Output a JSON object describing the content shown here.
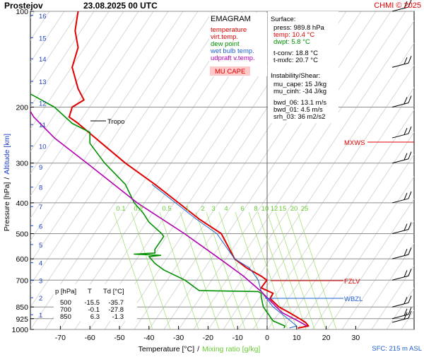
{
  "header": {
    "station": "Prostejov",
    "datetime": "23.08.2025 00 UTC",
    "credit": "CHMI © 2025"
  },
  "legend": {
    "title": "EMAGRAM",
    "items": [
      {
        "label": "temperature",
        "color": "#e00000"
      },
      {
        "label": "virt.temp.",
        "color": "#e00000"
      },
      {
        "label": "dew point",
        "color": "#009000"
      },
      {
        "label": "wet bulb temp.",
        "color": "#2060d0"
      },
      {
        "label": "udpraft v.temp.",
        "color": "#b000b0"
      }
    ],
    "badge": "MU CAPE",
    "badge_bg": "#ffc8c8",
    "badge_color": "#e00000"
  },
  "info": {
    "surface_title": "Surface:",
    "lines": [
      {
        "text": "press: 989.8 hPa",
        "color": "#000000"
      },
      {
        "text": "temp: 10.4 °C",
        "color": "#e00000"
      },
      {
        "text": "dwpt: 5.8 °C",
        "color": "#009000"
      },
      {
        "text": "t-conv: 18.8 °C",
        "color": "#000000"
      },
      {
        "text": "t-mxfc: 20.7 °C",
        "color": "#000000"
      }
    ],
    "instab_title": "Instability/Shear:",
    "stats": [
      "mu_cape: 15 J/kg",
      "mu_cinh: -34 J/kg",
      "bwd_06: 13.1 m/s",
      "bwd_01: 4.5 m/s",
      "srh_03: 36 m2/s2"
    ]
  },
  "table": {
    "headers": [
      "p [hPa]",
      "T",
      "Td [°C]"
    ],
    "rows": [
      [
        "500",
        "-15.5",
        "-35.7"
      ],
      [
        "700",
        "-0.1",
        "-27.8"
      ],
      [
        "850",
        "6.3",
        "-1.3"
      ]
    ]
  },
  "levels": {
    "tropo": "Tropo",
    "mxws": "MXWS",
    "fzlv": "FZLV",
    "wbzl": "WBZL",
    "sfc": "SFC: 215 m ASL"
  },
  "axes": {
    "xlabel": "Temperature [°C]",
    "xlabel_sep": "/",
    "xlabel2": "Mixing ratio [g/kg]",
    "ylabel": "Pressure [hPa]",
    "ylabel_sep": "/",
    "ylabel2": "Altitude [km]"
  },
  "chart_data": {
    "type": "line",
    "title": "EMAGRAM",
    "xlabel": "Temperature [°C]",
    "ylabel": "Pressure [hPa]",
    "y_scale": "log",
    "xlim": [
      -80,
      40
    ],
    "ylim": [
      1000,
      100
    ],
    "x_ticks": [
      -70,
      -60,
      -50,
      -40,
      -30,
      -20,
      -10,
      0,
      10,
      20,
      30
    ],
    "p_ticks": [
      100,
      200,
      300,
      400,
      500,
      600,
      700,
      850,
      925,
      1000
    ],
    "km_ticks": [
      16,
      15,
      14,
      13,
      12,
      11,
      10,
      9,
      8,
      7,
      6,
      5,
      4,
      3,
      2,
      1
    ],
    "mixing_ratio_labels": [
      "0.1",
      "0.2",
      "0.5",
      "1",
      "2",
      "3",
      "4",
      "6",
      "8",
      "10",
      "12",
      "15",
      "20",
      "25"
    ],
    "series": [
      {
        "name": "temperature",
        "color": "#e00000",
        "points": [
          [
            10.4,
            990
          ],
          [
            14,
            975
          ],
          [
            13,
            950
          ],
          [
            11,
            925
          ],
          [
            7,
            880
          ],
          [
            4,
            850
          ],
          [
            1,
            800
          ],
          [
            2,
            770
          ],
          [
            -2,
            740
          ],
          [
            -0.1,
            700
          ],
          [
            -2,
            680
          ],
          [
            -7,
            640
          ],
          [
            -11,
            600
          ],
          [
            -15.5,
            500
          ],
          [
            -23,
            450
          ],
          [
            -30,
            400
          ],
          [
            -38,
            350
          ],
          [
            -48,
            300
          ],
          [
            -56,
            260
          ],
          [
            -64,
            225
          ],
          [
            -67,
            215
          ],
          [
            -66,
            200
          ],
          [
            -62,
            190
          ],
          [
            -64,
            175
          ],
          [
            -66,
            150
          ],
          [
            -64,
            130
          ],
          [
            -65,
            115
          ],
          [
            -64,
            100
          ]
        ]
      },
      {
        "name": "dew point",
        "color": "#009000",
        "points": [
          [
            5.8,
            990
          ],
          [
            6,
            975
          ],
          [
            2,
            940
          ],
          [
            -1.3,
            850
          ],
          [
            -2,
            790
          ],
          [
            -2,
            770
          ],
          [
            -3,
            760
          ],
          [
            -23,
            755
          ],
          [
            -27.8,
            700
          ],
          [
            -35,
            650
          ],
          [
            -38,
            620
          ],
          [
            -40,
            590
          ],
          [
            -36,
            585
          ],
          [
            -45,
            580
          ],
          [
            -38,
            575
          ],
          [
            -38,
            560
          ],
          [
            -35,
            510
          ],
          [
            -35.7,
            500
          ],
          [
            -40,
            460
          ],
          [
            -42,
            430
          ],
          [
            -45,
            400
          ],
          [
            -48,
            350
          ],
          [
            -55,
            300
          ],
          [
            -60,
            260
          ],
          [
            -60,
            240
          ],
          [
            -66,
            225
          ],
          [
            -72,
            200
          ],
          [
            -81,
            180
          ]
        ]
      },
      {
        "name": "wet bulb temp.",
        "color": "#2060d0",
        "points": [
          [
            7.5,
            990
          ],
          [
            10,
            975
          ],
          [
            7,
            925
          ],
          [
            2,
            850
          ],
          [
            -2,
            760
          ],
          [
            -3,
            700
          ],
          [
            -6,
            640
          ],
          [
            -11,
            600
          ],
          [
            -17,
            500
          ],
          [
            -24,
            450
          ],
          [
            -31,
            400
          ],
          [
            -39,
            350
          ]
        ]
      },
      {
        "name": "udpraft v.temp.",
        "color": "#b000b0",
        "points": [
          [
            13.5,
            975
          ],
          [
            10,
            935
          ],
          [
            5,
            885
          ],
          [
            -2,
            760
          ],
          [
            -8,
            680
          ],
          [
            -16,
            600
          ],
          [
            -28,
            500
          ],
          [
            -44,
            400
          ],
          [
            -61,
            300
          ],
          [
            -72,
            250
          ],
          [
            -79,
            215
          ],
          [
            -81,
            200
          ]
        ]
      }
    ],
    "tropopause_hpa": 225,
    "wind_levels_hpa": [
      950,
      925,
      850,
      700,
      600,
      500,
      400,
      300,
      250,
      200,
      150,
      100
    ]
  }
}
